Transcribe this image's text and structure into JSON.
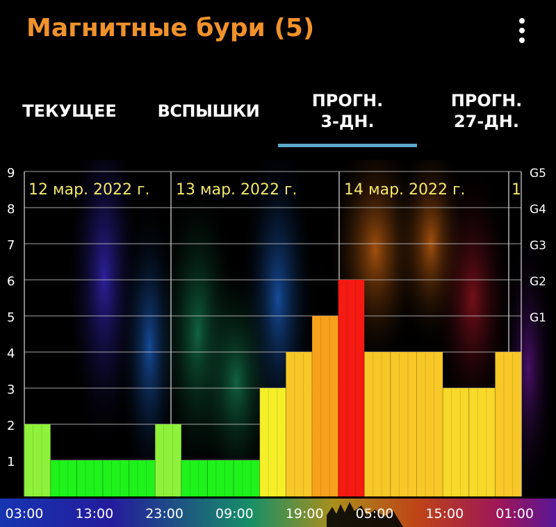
{
  "app": {
    "title": "Магнитные бури (5)",
    "menu_icon": "more-vert-icon",
    "title_color": "#f0922b"
  },
  "tabs": [
    {
      "label": "ТЕКУЩЕЕ",
      "selected": false
    },
    {
      "label": "ВСПЫШКИ",
      "selected": false
    },
    {
      "label": "ПРОГН.\n3-ДН.",
      "selected": true
    },
    {
      "label": "ПРОГН.\n27-ДН.",
      "selected": false
    }
  ],
  "accent_color": "#5ba8c8",
  "chart_data": {
    "type": "bar",
    "title": "",
    "ylabel": "",
    "xlabel": "",
    "ylim": [
      0,
      9
    ],
    "y_ticks": [
      "1",
      "2",
      "3",
      "4",
      "5",
      "6",
      "7",
      "8",
      "9"
    ],
    "g_ticks": [
      {
        "label": "G1",
        "value": 5
      },
      {
        "label": "G2",
        "value": 6
      },
      {
        "label": "G3",
        "value": 7
      },
      {
        "label": "G4",
        "value": 8
      },
      {
        "label": "G5",
        "value": 9
      }
    ],
    "x_tick_labels": [
      "03:00",
      "13:00",
      "23:00",
      "09:00",
      "19:00",
      "05:00",
      "15:00",
      "01:00"
    ],
    "date_labels": [
      "12 мар. 2022 г.",
      "13 мар. 2022 г.",
      "14 мар. 2022 г.",
      "1"
    ],
    "grid": true,
    "values": [
      2,
      1,
      1,
      1,
      1,
      2,
      1,
      1,
      1,
      3,
      4,
      5,
      6,
      4,
      4,
      4,
      3,
      3,
      4
    ],
    "bar_colors": [
      "#8ff23a",
      "#1ef21a",
      "#1ef21a",
      "#1ef21a",
      "#1ef21a",
      "#8ff23a",
      "#1ef21a",
      "#1ef21a",
      "#1ef21a",
      "#f5ef29",
      "#f8c828",
      "#f8a11c",
      "#f51a12",
      "#f8c828",
      "#f8c828",
      "#f8c828",
      "#f8d92a",
      "#f8d92a",
      "#f8c828"
    ]
  }
}
